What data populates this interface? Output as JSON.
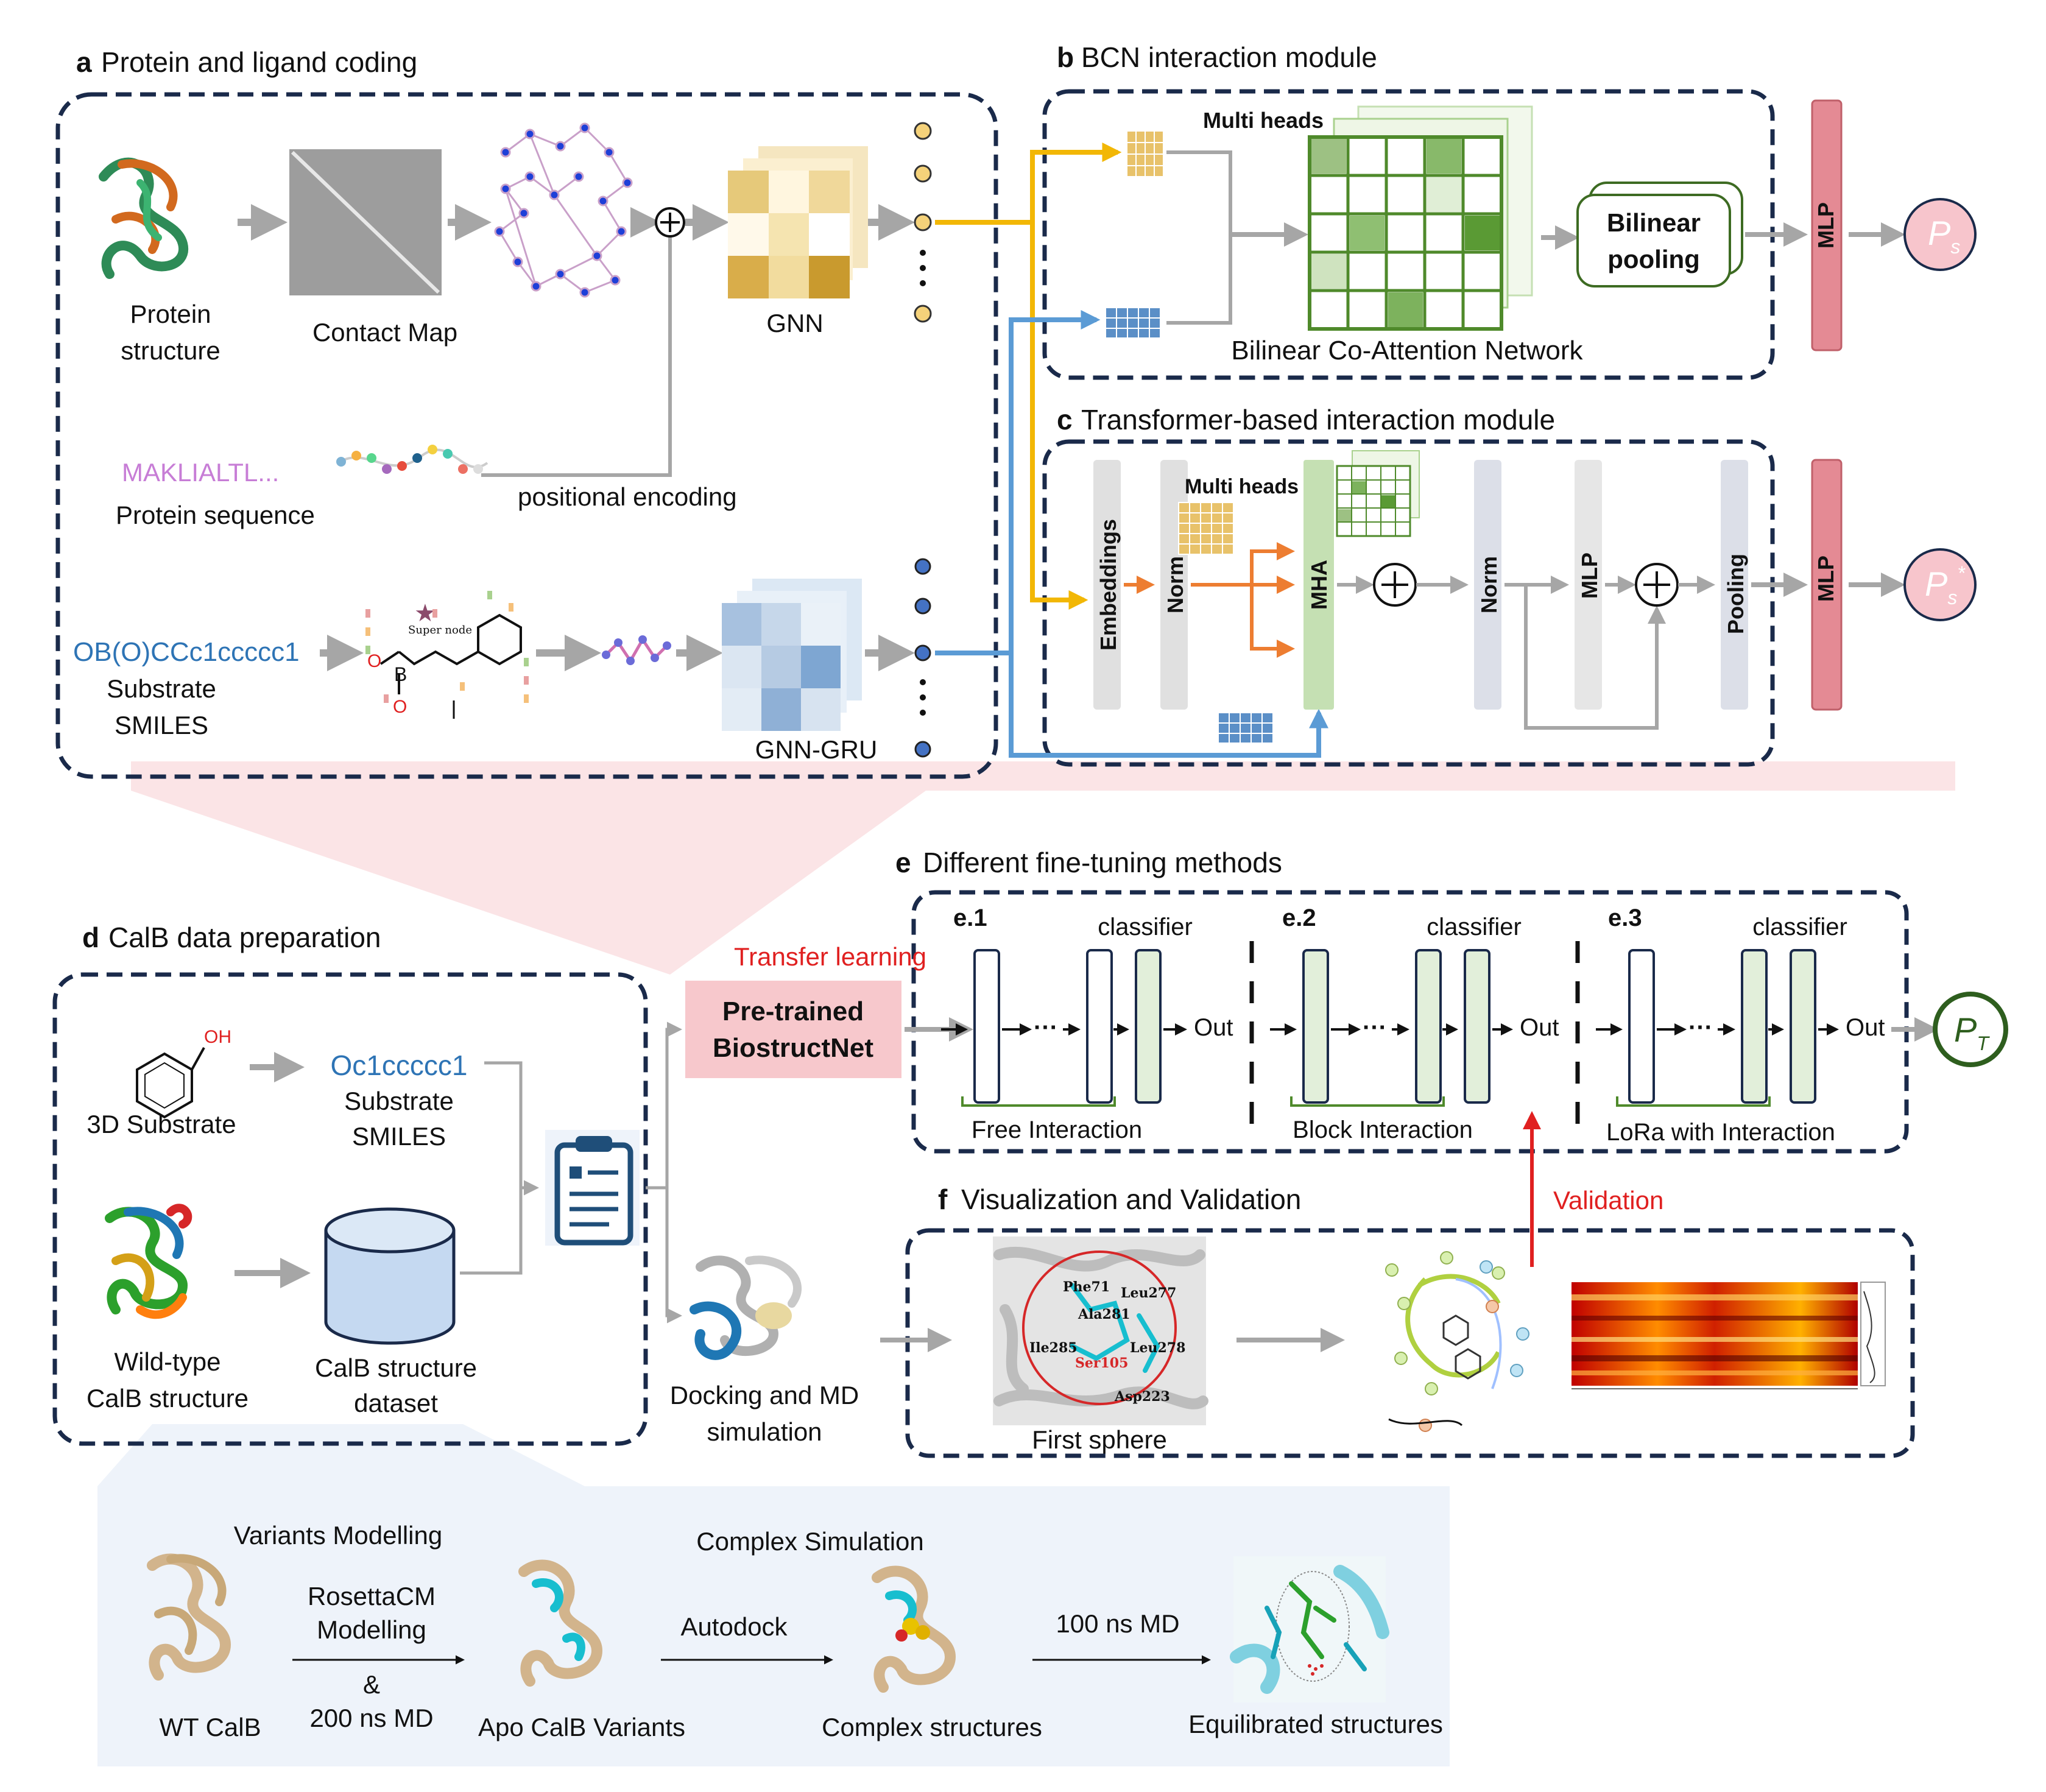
{
  "panels": {
    "a": {
      "letter": "a",
      "title": "Protein and ligand coding"
    },
    "b": {
      "letter": "b",
      "title": "BCN interaction module"
    },
    "c": {
      "letter": "c",
      "title": "Transformer-based interaction module"
    },
    "d": {
      "letter": "d",
      "title": "CalB data preparation"
    },
    "e": {
      "letter": "e",
      "title": "Different fine-tuning methods"
    },
    "f": {
      "letter": "f",
      "title": "Visualization and Validation"
    }
  },
  "panel_a": {
    "protein_structure_l1": "Protein",
    "protein_structure_l2": "structure",
    "contact_map": "Contact Map",
    "gnn": "GNN",
    "sequence": "MAKLIALTL...",
    "protein_sequence": "Protein sequence",
    "positional_encoding": "positional encoding",
    "smiles": "OB(O)CCc1ccccc1",
    "substrate_smiles_l1": "Substrate",
    "substrate_smiles_l2": "SMILES",
    "gnn_gru": "GNN-GRU",
    "super_node": "Super node",
    "atom_b": "B",
    "atom_o1": "O",
    "atom_o2": "O"
  },
  "panel_b": {
    "multi_heads": "Multi heads",
    "bilinear_pooling_l1": "Bilinear",
    "bilinear_pooling_l2": "pooling",
    "bcn_label": "Bilinear Co-Attention Network",
    "mlp": "MLP",
    "output_symbol": "P",
    "output_sub": "s"
  },
  "panel_c": {
    "embeddings": "Embeddings",
    "norm1": "Norm",
    "multi_heads": "Multi heads",
    "mha": "MHA",
    "norm2": "Norm",
    "mlp_inner": "MLP",
    "pooling": "Pooling",
    "mlp": "MLP",
    "output_symbol": "P",
    "output_sub": "s",
    "output_sup": "*"
  },
  "panel_d": {
    "oh": "OH",
    "substrate_3d": "3D Substrate",
    "smiles": "Oc1ccccc1",
    "substrate_smiles_l1": "Substrate",
    "substrate_smiles_l2": "SMILES",
    "wildtype_l1": "Wild-type",
    "wildtype_l2": "CalB structure",
    "dataset_l1": "CalB structure",
    "dataset_l2": "dataset"
  },
  "transfer": {
    "label": "Transfer learning",
    "pretrained_l1": "Pre-trained",
    "pretrained_l2": "BiostructNet",
    "docking_l1": "Docking and MD",
    "docking_l2": "simulation"
  },
  "panel_e": {
    "methods": [
      {
        "id": "e.1",
        "classifier": "classifier",
        "out": "Out",
        "caption": "Free Interaction"
      },
      {
        "id": "e.2",
        "classifier": "classifier",
        "out": "Out",
        "caption": "Block Interaction"
      },
      {
        "id": "e.3",
        "classifier": "classifier",
        "out": "Out",
        "caption": "LoRa with Interaction"
      }
    ],
    "dots": "···",
    "output_symbol": "P",
    "output_sub": "T"
  },
  "panel_f": {
    "validation": "Validation",
    "first_sphere": "First sphere",
    "residues": [
      "Phe71",
      "Leu277",
      "Ala281",
      "Ile285",
      "Leu278",
      "Ser105",
      "Asp223"
    ]
  },
  "bottom": {
    "variants_modelling": "Variants Modelling",
    "complex_simulation": "Complex Simulation",
    "wt_calb": "WT CalB",
    "rosetta_l1": "RosettaCM",
    "rosetta_l2": "Modelling",
    "ampersand": "&",
    "md200": "200 ns MD",
    "apo": "Apo CalB Variants",
    "autodock": "Autodock",
    "complex": "Complex structures",
    "md100": "100 ns MD",
    "equilibrated": "Equilibrated structures"
  },
  "colors": {
    "frame": "#1a2a4a",
    "gold": "#f2b705",
    "blue": "#5b9bd5",
    "green": "#4f8a2b",
    "mlp_pink": "#e48a94",
    "orange": "#ed7d31",
    "red_text": "#e02020",
    "smiles_blue": "#2e74b5",
    "sequence_purple": "#c77dd6",
    "arrow_grey": "#a6a6a6"
  }
}
